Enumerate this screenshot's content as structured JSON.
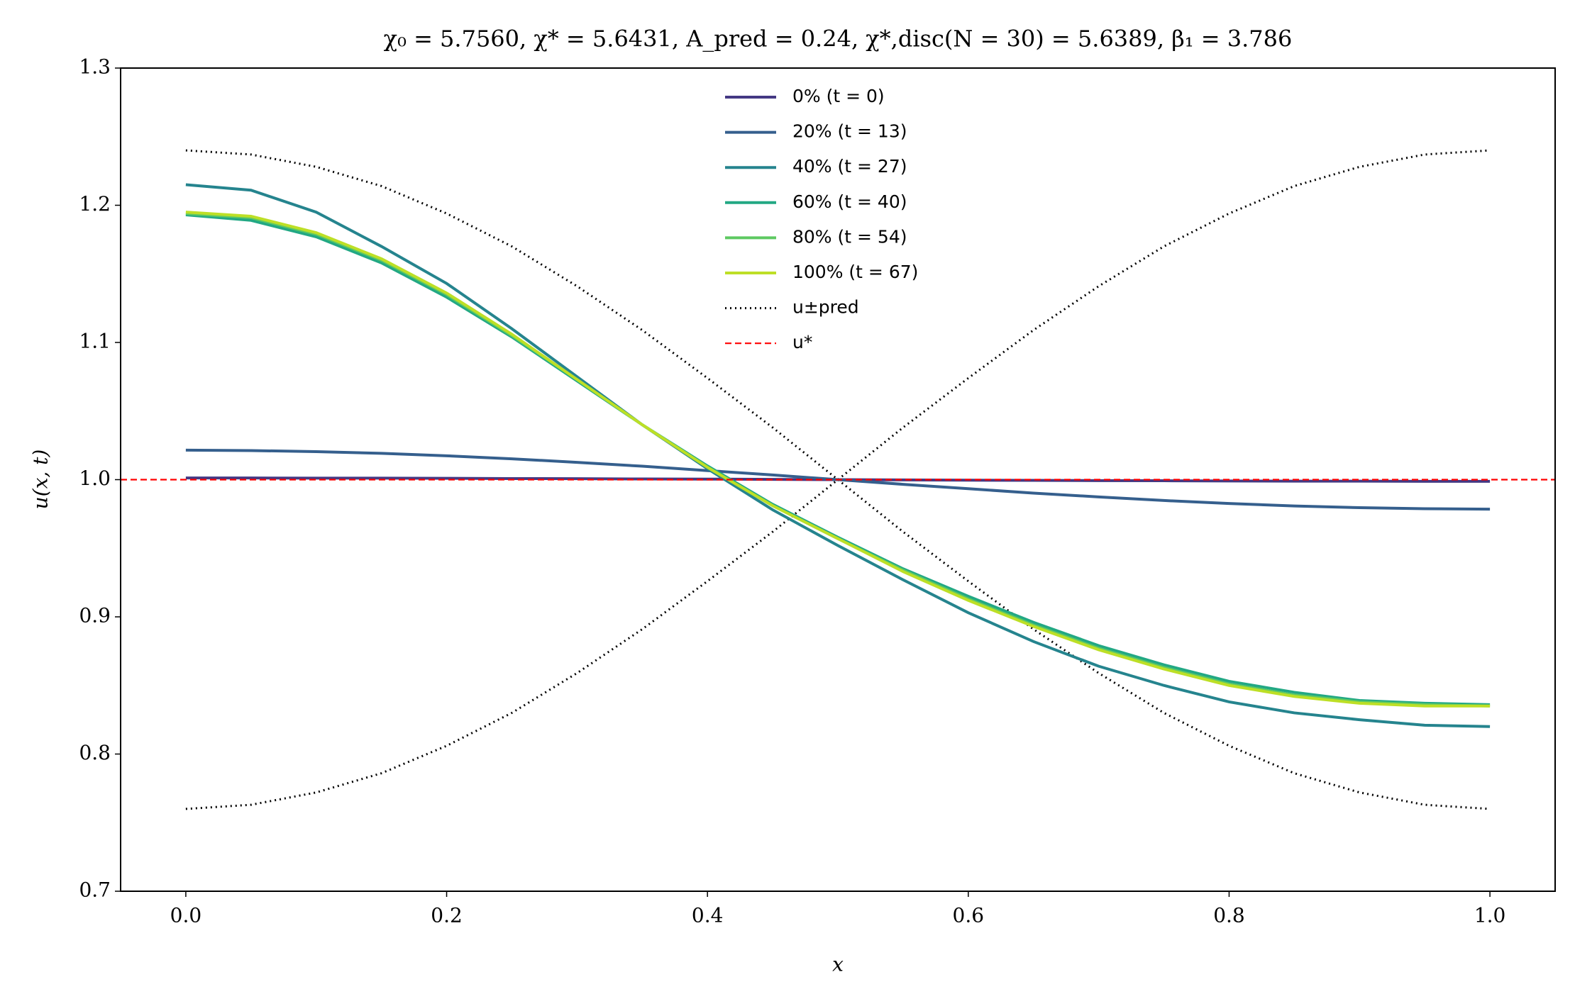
{
  "chart_data": {
    "type": "line",
    "title": "χ₀ = 5.7560,  χ* = 5.6431,  A_pred = 0.24,  χ*,disc(N = 30) = 5.6389,  β₁ = 3.786",
    "xlabel": "x",
    "ylabel": "u(x, t)",
    "x": [
      0,
      0.05,
      0.1,
      0.15,
      0.2,
      0.25,
      0.3,
      0.35,
      0.4,
      0.45,
      0.5,
      0.55,
      0.6,
      0.65,
      0.7,
      0.75,
      0.8,
      0.85,
      0.9,
      0.95,
      1
    ],
    "xlim": [
      -0.05,
      1.05
    ],
    "xticks": [
      {
        "value": 0,
        "label": "0.0"
      },
      0.2,
      0.4,
      0.6,
      0.8,
      {
        "value": 1,
        "label": "1.0"
      }
    ],
    "ylim": [
      0.7,
      1.3
    ],
    "yticks": [
      0.7,
      0.8,
      0.9,
      {
        "value": 1,
        "label": "1.0"
      },
      1.1,
      1.2,
      1.3
    ],
    "legend": "upper center",
    "series": [
      {
        "name": "0% (t = 0)",
        "color": "#443983",
        "values": [
          1.0012,
          1.0012,
          1.0011,
          1.0011,
          1.001,
          1.0008,
          1.0007,
          1.0005,
          1.0004,
          1.0002,
          1.0,
          0.9998,
          0.9996,
          0.9995,
          0.9993,
          0.9992,
          0.999,
          0.9989,
          0.9989,
          0.9988,
          0.9988
        ]
      },
      {
        "name": "20% (t = 13)",
        "color": "#355f8d",
        "values": [
          1.0215,
          1.0212,
          1.0204,
          1.0192,
          1.0174,
          1.0152,
          1.0126,
          1.0098,
          1.0066,
          1.0034,
          1.0,
          0.9966,
          0.9934,
          0.9902,
          0.9874,
          0.9848,
          0.9826,
          0.9808,
          0.9796,
          0.9788,
          0.9785
        ]
      },
      {
        "name": "40% (t = 27)",
        "color": "#25848e",
        "values": [
          1.215,
          1.211,
          1.195,
          1.17,
          1.143,
          1.11,
          1.075,
          1.04,
          1.008,
          0.978,
          0.952,
          0.927,
          0.903,
          0.882,
          0.864,
          0.85,
          0.838,
          0.83,
          0.825,
          0.821,
          0.82
        ]
      },
      {
        "name": "60% (t = 40)",
        "color": "#22a884",
        "values": [
          1.193,
          1.189,
          1.177,
          1.158,
          1.133,
          1.104,
          1.072,
          1.04,
          1.01,
          0.982,
          0.958,
          0.935,
          0.915,
          0.896,
          0.879,
          0.865,
          0.853,
          0.845,
          0.839,
          0.837,
          0.836
        ]
      },
      {
        "name": "80% (t = 54)",
        "color": "#5ec962",
        "values": [
          1.194,
          1.191,
          1.179,
          1.16,
          1.135,
          1.105,
          1.073,
          1.04,
          1.009,
          0.981,
          0.957,
          0.934,
          0.913,
          0.894,
          0.877,
          0.863,
          0.851,
          0.843,
          0.838,
          0.836,
          0.835
        ]
      },
      {
        "name": "100% (t = 67)",
        "color": "#bddf26",
        "values": [
          1.195,
          1.192,
          1.18,
          1.161,
          1.136,
          1.106,
          1.073,
          1.04,
          1.009,
          0.981,
          0.957,
          0.933,
          0.912,
          0.893,
          0.876,
          0.862,
          0.85,
          0.842,
          0.837,
          0.835,
          0.835
        ]
      }
    ],
    "bounds": {
      "name": "u±pred",
      "color": "#000000",
      "upper": [
        1.24,
        1.237,
        1.228,
        1.214,
        1.194,
        1.17,
        1.141,
        1.109,
        1.074,
        1.038,
        1.0,
        0.962,
        0.926,
        0.891,
        0.859,
        0.83,
        0.806,
        0.786,
        0.772,
        0.763,
        0.76
      ],
      "lower": [
        0.76,
        0.763,
        0.772,
        0.786,
        0.806,
        0.83,
        0.859,
        0.891,
        0.926,
        0.962,
        1.0,
        1.038,
        1.074,
        1.109,
        1.141,
        1.17,
        1.194,
        1.214,
        1.228,
        1.237,
        1.24
      ]
    },
    "hline": {
      "name": "u*",
      "color": "#ff0000",
      "value": 1.0
    }
  }
}
